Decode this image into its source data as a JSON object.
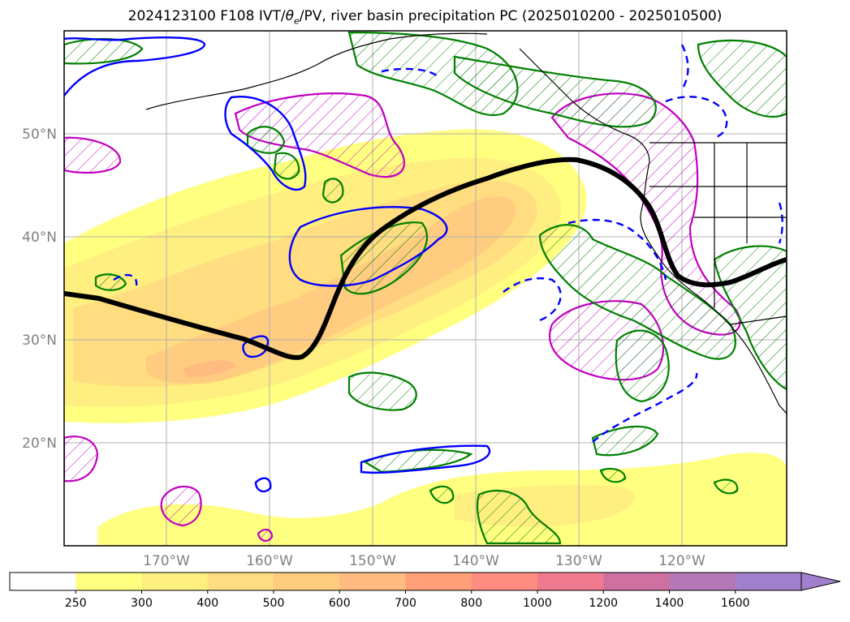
{
  "title": {
    "prefix": "2024123100 F108 IVT/",
    "theta": "θ",
    "theta_sub": "e",
    "suffix": "/PV, river basin precipitation PC (2025010200 - 2025010500)"
  },
  "axes": {
    "lat_labels": [
      "50°N",
      "40°N",
      "30°N",
      "20°N"
    ],
    "lon_labels": [
      "170°W",
      "160°W",
      "150°W",
      "140°W",
      "130°W",
      "120°W"
    ],
    "tick_color": "#808080"
  },
  "colorbar": {
    "levels": [
      "250",
      "300",
      "400",
      "500",
      "600",
      "700",
      "800",
      "1000",
      "1200",
      "1400",
      "1600"
    ],
    "colors": [
      "#ffffff",
      "#ffff80",
      "#ffee80",
      "#ffdd80",
      "#ffcc80",
      "#ffbb80",
      "#ffa07a",
      "#ff8c80",
      "#ef7a90",
      "#d070a0",
      "#b478b8",
      "#a080cc"
    ]
  },
  "legend_colors": {
    "jet_axis": "#000000",
    "pv_contour": "#0000ff",
    "theta_e": "#008000",
    "precip_pc": "#c000c0"
  }
}
